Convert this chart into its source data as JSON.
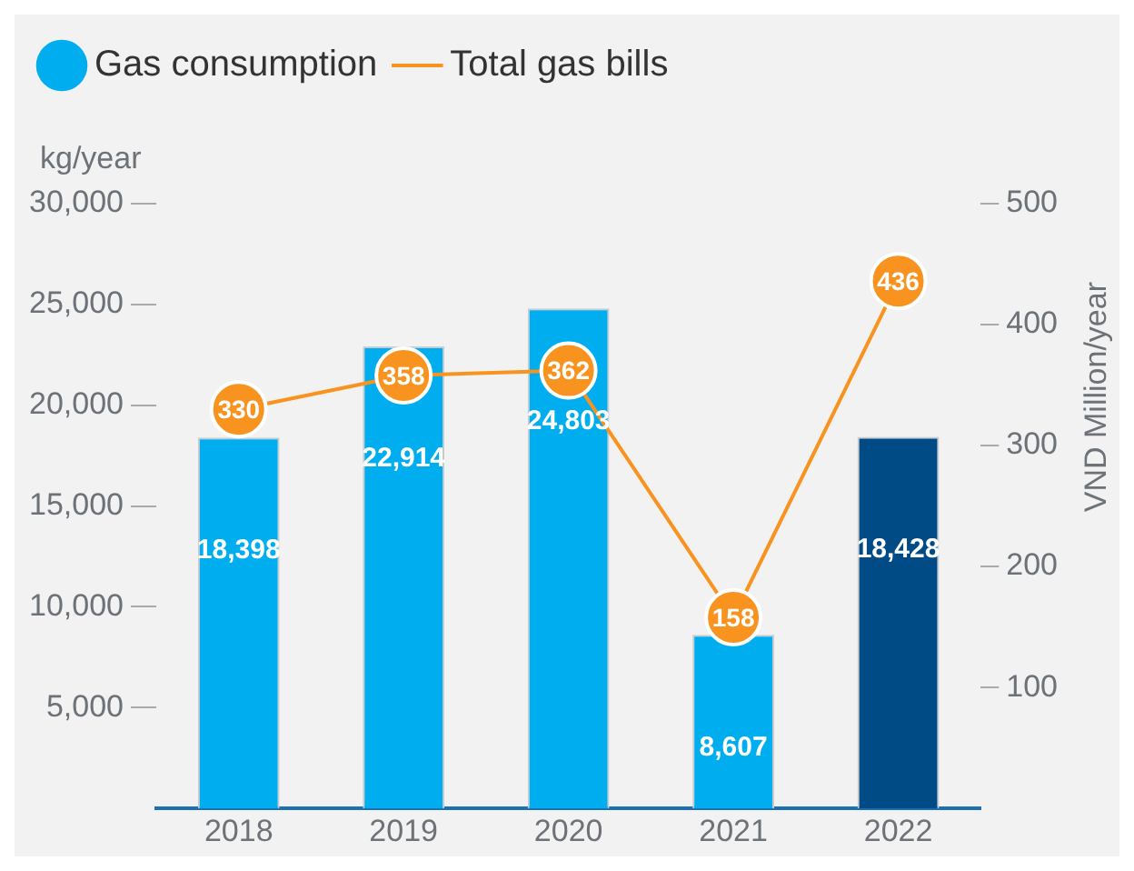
{
  "chart_data": {
    "type": "bar",
    "categories": [
      "2018",
      "2019",
      "2020",
      "2021",
      "2022"
    ],
    "series": [
      {
        "name": "Gas consumption",
        "color": "#00aeef",
        "colors": [
          "#00aeef",
          "#00aeef",
          "#00aeef",
          "#00aeef",
          "#004a85"
        ],
        "values": [
          18398,
          22914,
          24803,
          8607,
          18428
        ],
        "value_labels": [
          "18,398",
          "22,914",
          "24,803",
          "8,607",
          "18,428"
        ]
      },
      {
        "name": "Total gas bills",
        "type": "line",
        "axis": "y2",
        "color": "#f7931e",
        "marker": "circle",
        "values": [
          330,
          358,
          362,
          158,
          436
        ],
        "value_labels": [
          "330",
          "358",
          "362",
          "158",
          "436"
        ]
      }
    ],
    "ylabel": "kg/year",
    "y2label": "VND Million/year",
    "ylim": [
      0,
      30000
    ],
    "yticks": [
      {
        "value": 5000,
        "label": "5,000"
      },
      {
        "value": 10000,
        "label": "10,000"
      },
      {
        "value": 15000,
        "label": "15,000"
      },
      {
        "value": 20000,
        "label": "20,000"
      },
      {
        "value": 25000,
        "label": "25,000"
      },
      {
        "value": 30000,
        "label": "30,000"
      }
    ],
    "y2lim": [
      0,
      500
    ],
    "y2ticks": [
      100,
      200,
      300,
      400,
      500
    ],
    "grid": false,
    "legend": "top left"
  }
}
